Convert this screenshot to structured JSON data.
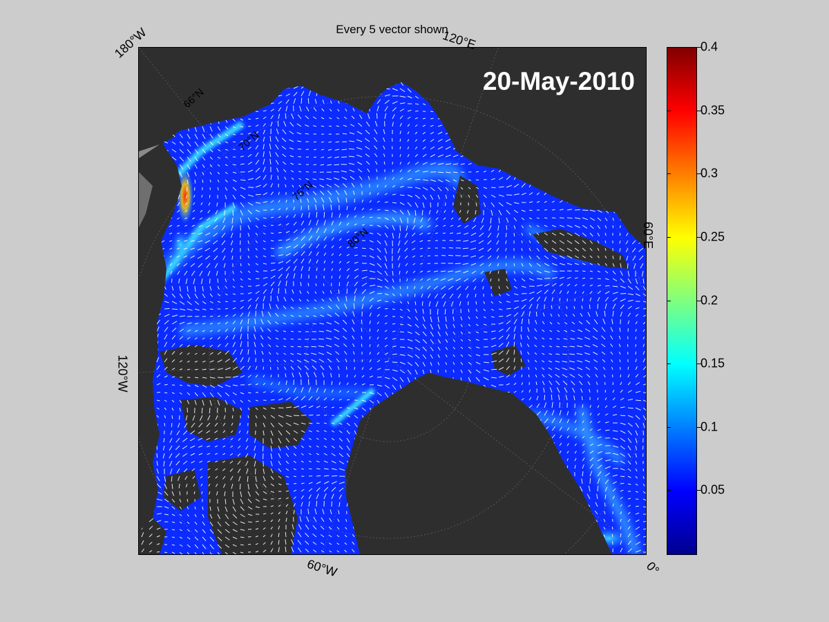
{
  "figure": {
    "title": "Every 5 vector shown",
    "date": "20-May-2010"
  },
  "map_labels": {
    "left_top": "180°W",
    "left_mid": "120°W",
    "bottom_mid": "60°W",
    "bottom_right": "0°",
    "top_right": "120°E",
    "right_mid": "60°E",
    "lat_66": "66°N",
    "lat_70": "70°N",
    "lat_75": "75°N",
    "lat_80": "80°N"
  },
  "colorbar": {
    "ticks": [
      "0.4",
      "0.35",
      "0.3",
      "0.25",
      "0.2",
      "0.15",
      "0.1",
      "0.05"
    ],
    "range": [
      0,
      0.4
    ],
    "colormap": "jet"
  },
  "colors": {
    "background": "#cccccc",
    "land": "#2e2e2e",
    "land_outside": "#8a8a8a",
    "ice_low": "#0a22ff",
    "ice_mid": "#1e78ff",
    "ice_high": "#28d7ff",
    "vector": "#ffffff"
  }
}
